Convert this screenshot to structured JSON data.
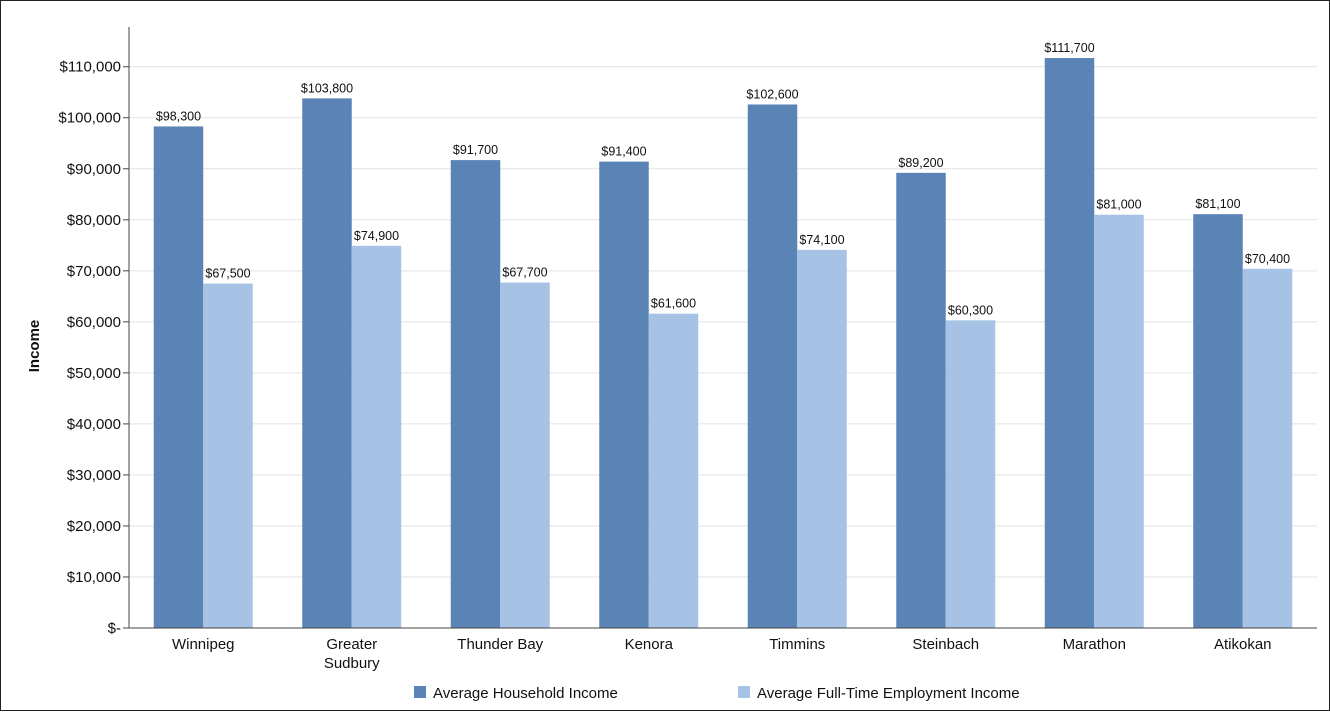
{
  "chart_data": {
    "type": "bar",
    "title": "",
    "xlabel": "",
    "ylabel": "Income",
    "ylim": [
      0,
      117000
    ],
    "grid": true,
    "legend_position": "bottom",
    "y_ticks": [
      {
        "value": 0,
        "label": "$-"
      },
      {
        "value": 10000,
        "label": "$10,000"
      },
      {
        "value": 20000,
        "label": "$20,000"
      },
      {
        "value": 30000,
        "label": "$30,000"
      },
      {
        "value": 40000,
        "label": "$40,000"
      },
      {
        "value": 50000,
        "label": "$50,000"
      },
      {
        "value": 60000,
        "label": "$60,000"
      },
      {
        "value": 70000,
        "label": "$70,000"
      },
      {
        "value": 80000,
        "label": "$80,000"
      },
      {
        "value": 90000,
        "label": "$90,000"
      },
      {
        "value": 100000,
        "label": "$100,000"
      },
      {
        "value": 110000,
        "label": "$110,000"
      }
    ],
    "categories": [
      [
        "Winnipeg"
      ],
      [
        "Greater",
        "Sudbury"
      ],
      [
        "Thunder Bay"
      ],
      [
        "Kenora"
      ],
      [
        "Timmins"
      ],
      [
        "Steinbach"
      ],
      [
        "Marathon"
      ],
      [
        "Atikokan"
      ]
    ],
    "series": [
      {
        "name": "Average Household Income",
        "color": "#5a84b5",
        "values": [
          98300,
          103800,
          91700,
          91400,
          102600,
          89200,
          111700,
          81100
        ],
        "labels": [
          "$98,300",
          "$103,800",
          "$91,700",
          "$91,400",
          "$102,600",
          "$89,200",
          "$111,700",
          "$81,100"
        ]
      },
      {
        "name": "Average Full-Time Employment Income",
        "color": "#a6c3e5",
        "values": [
          67500,
          74900,
          67700,
          61600,
          74100,
          60300,
          81000,
          70400
        ],
        "labels": [
          "$67,500",
          "$74,900",
          "$67,700",
          "$61,600",
          "$74,100",
          "$60,300",
          "$81,000",
          "$70,400"
        ]
      }
    ]
  }
}
